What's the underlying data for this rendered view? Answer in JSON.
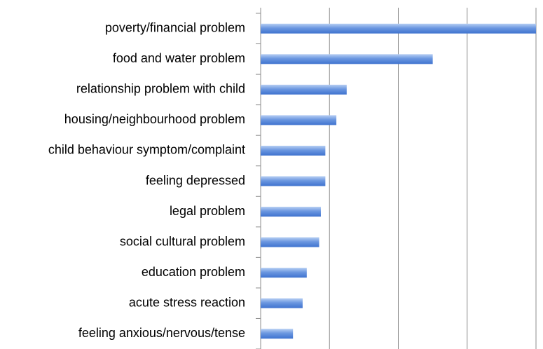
{
  "chart_data": {
    "type": "bar",
    "orientation": "horizontal",
    "categories": [
      "poverty/financial problem",
      "food and water problem",
      "relationship problem with child",
      "housing/neighbourhood problem",
      "child behaviour symptom/complaint",
      "feeling depressed",
      "legal problem",
      "social cultural problem",
      "education problem",
      "acute stress reaction",
      "feeling anxious/nervous/tense"
    ],
    "values": [
      4.0,
      2.5,
      1.25,
      1.1,
      0.94,
      0.94,
      0.875,
      0.85,
      0.67,
      0.61,
      0.47
    ],
    "color": "#4f81d6",
    "xlim": [
      0,
      4
    ],
    "xticks": [
      0,
      1,
      2,
      3,
      4
    ],
    "grid": true
  }
}
